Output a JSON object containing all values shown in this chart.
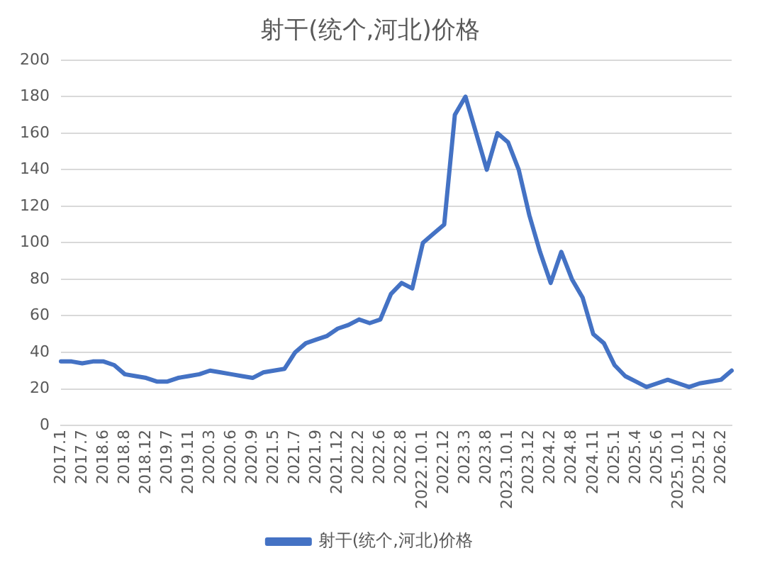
{
  "chart_data": {
    "type": "line",
    "title": "射干(统个,河北)价格",
    "categories": [
      "2017.1",
      null,
      "2017.7",
      null,
      "2018.6",
      null,
      "2018.8",
      null,
      "2018.12",
      null,
      "2019.7",
      null,
      "2019.11",
      null,
      "2020.3",
      null,
      "2020.6",
      null,
      "2020.9",
      null,
      "2021.5",
      null,
      "2021.7",
      null,
      "2021.9",
      null,
      "2021.12",
      null,
      "2022.2",
      null,
      "2022.6",
      null,
      "2022.8",
      null,
      "2022.10.1",
      null,
      "2022.12",
      null,
      "2023.3",
      null,
      "2023.8",
      null,
      "2023.10.1",
      null,
      "2023.12",
      null,
      "2024.2",
      null,
      "2024.8",
      null,
      "2024.11",
      null,
      "2025.1",
      null,
      "2025.4",
      null,
      "2025.6",
      null,
      "2025.10.1",
      null,
      "2025.12",
      null,
      "2026.2",
      null
    ],
    "series": [
      {
        "name": "射干(统个,河北)价格",
        "color": "#4472c4",
        "values": [
          35,
          35,
          34,
          35,
          35,
          33,
          28,
          27,
          26,
          24,
          24,
          26,
          27,
          28,
          30,
          29,
          28,
          27,
          26,
          29,
          30,
          31,
          40,
          45,
          47,
          49,
          53,
          55,
          58,
          56,
          58,
          72,
          78,
          75,
          100,
          105,
          110,
          170,
          180,
          160,
          140,
          160,
          155,
          140,
          115,
          95,
          78,
          95,
          80,
          70,
          50,
          45,
          33,
          27,
          24,
          21,
          23,
          25,
          23,
          21,
          23,
          24,
          25,
          30
        ]
      }
    ],
    "ylim": [
      0,
      200
    ],
    "yticks": [
      0,
      20,
      40,
      60,
      80,
      100,
      120,
      140,
      160,
      180,
      200
    ],
    "grid": "y",
    "legend": "bottom",
    "marker": "none",
    "line_style": "solid"
  }
}
